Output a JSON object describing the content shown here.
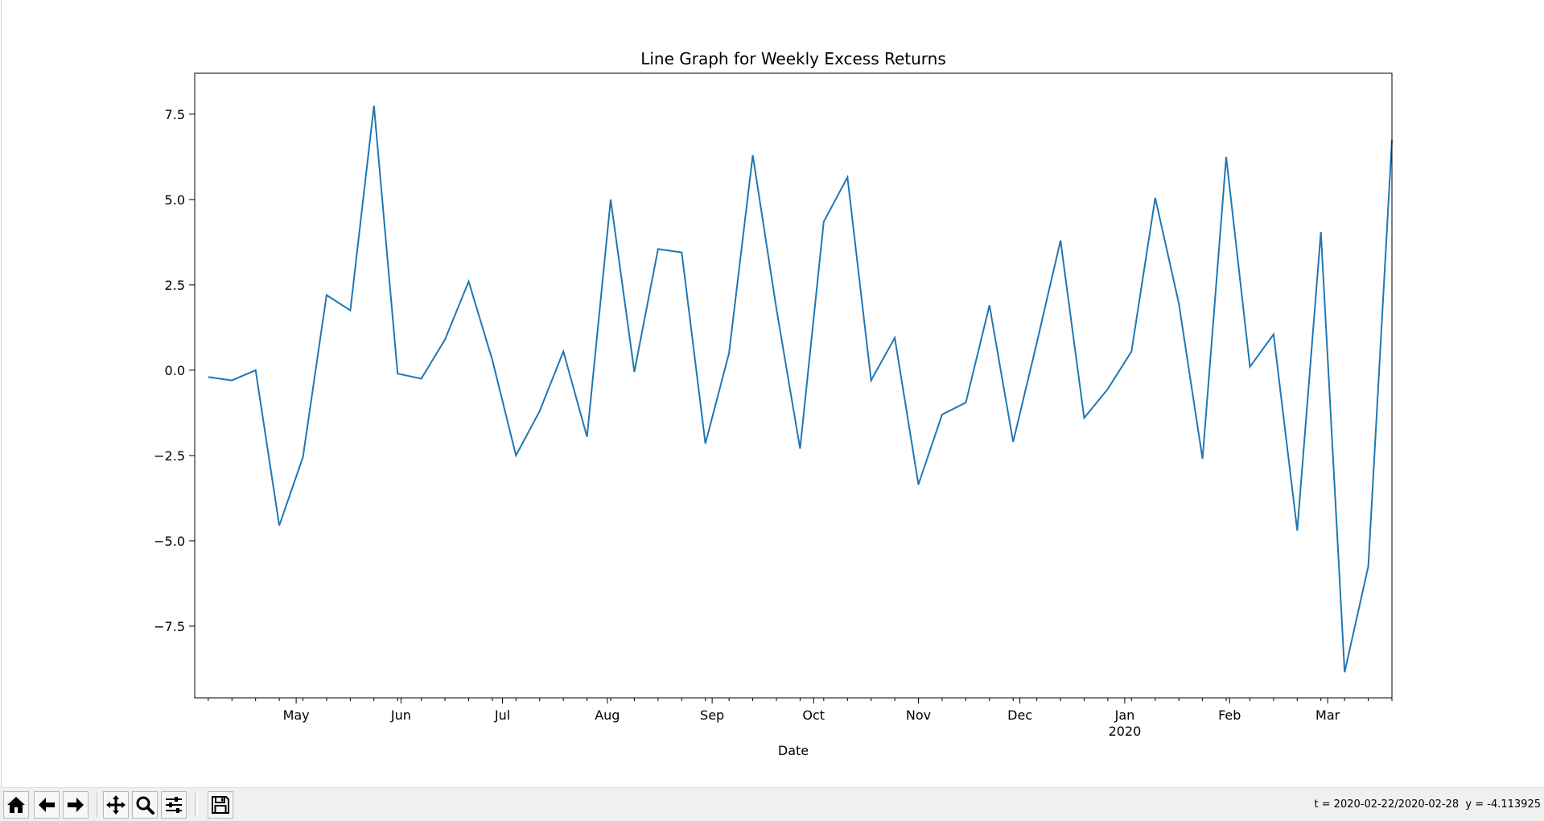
{
  "chart_data": {
    "type": "line",
    "title": "Line Graph for Weekly Excess Returns",
    "xlabel": "Date",
    "ylabel": "",
    "x_tick_labels": [
      "May",
      "Jun",
      "Jul",
      "Aug",
      "Sep",
      "Oct",
      "Nov",
      "Dec",
      "Jan",
      "Feb",
      "Mar"
    ],
    "x_year_label": "2020",
    "y_ticks": [
      -7.5,
      -5.0,
      -2.5,
      0.0,
      2.5,
      5.0,
      7.5
    ],
    "y_tick_labels": [
      "−7.5",
      "−5.0",
      "−2.5",
      "0.0",
      "2.5",
      "5.0",
      "7.5"
    ],
    "xlim": [
      "2019-04-01",
      "2020-03-20"
    ],
    "ylim": [
      -9.6,
      8.7
    ],
    "grid": false,
    "legend": "none",
    "series": [
      {
        "color": "#1f77b4",
        "x": [
          "2019-04-05",
          "2019-04-12",
          "2019-04-19",
          "2019-04-26",
          "2019-05-03",
          "2019-05-10",
          "2019-05-17",
          "2019-05-24",
          "2019-05-31",
          "2019-06-07",
          "2019-06-14",
          "2019-06-21",
          "2019-06-28",
          "2019-07-05",
          "2019-07-12",
          "2019-07-19",
          "2019-07-26",
          "2019-08-02",
          "2019-08-09",
          "2019-08-16",
          "2019-08-23",
          "2019-08-30",
          "2019-09-06",
          "2019-09-13",
          "2019-09-20",
          "2019-09-27",
          "2019-10-04",
          "2019-10-11",
          "2019-10-18",
          "2019-10-25",
          "2019-11-01",
          "2019-11-08",
          "2019-11-15",
          "2019-11-22",
          "2019-11-29",
          "2019-12-06",
          "2019-12-13",
          "2019-12-20",
          "2019-12-27",
          "2020-01-03",
          "2020-01-10",
          "2020-01-17",
          "2020-01-24",
          "2020-01-31",
          "2020-02-07",
          "2020-02-14",
          "2020-02-21",
          "2020-02-28",
          "2020-03-06",
          "2020-03-13",
          "2020-03-20"
        ],
        "values": [
          -0.2,
          -0.3,
          0.0,
          -4.55,
          -2.55,
          2.2,
          1.75,
          7.75,
          -0.1,
          -0.25,
          0.9,
          2.6,
          0.3,
          -2.5,
          -1.2,
          0.55,
          -1.95,
          5.0,
          -0.05,
          3.55,
          3.45,
          -2.15,
          0.5,
          6.3,
          1.8,
          -2.3,
          4.35,
          5.65,
          -0.3,
          0.95,
          -3.35,
          -1.3,
          -0.95,
          1.9,
          -2.1,
          0.8,
          3.8,
          -1.4,
          -0.55,
          0.55,
          5.05,
          1.95,
          -2.6,
          6.25,
          0.1,
          1.05,
          -4.7,
          4.05,
          -8.85,
          -5.75,
          6.75
        ]
      }
    ]
  },
  "toolbar": {
    "buttons": [
      {
        "name": "home-button",
        "icon": "home-icon"
      },
      {
        "name": "back-button",
        "icon": "arrow-left-icon"
      },
      {
        "name": "forward-button",
        "icon": "arrow-right-icon"
      },
      {
        "name": "pan-button",
        "icon": "move-icon"
      },
      {
        "name": "zoom-button",
        "icon": "magnifier-icon"
      },
      {
        "name": "configure-subplots-button",
        "icon": "sliders-icon"
      },
      {
        "name": "save-button",
        "icon": "floppy-disk-icon"
      }
    ],
    "coordinate_readout": "t = 2020-02-22/2020-02-28  y = -4.113925"
  }
}
